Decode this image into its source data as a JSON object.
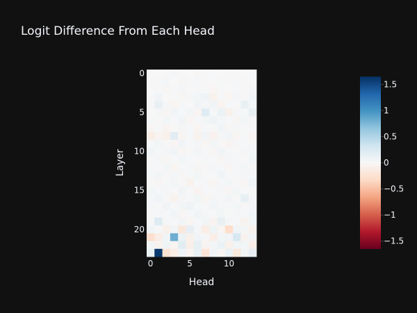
{
  "chart_data": {
    "type": "heatmap",
    "title": "Logit Difference From Each Head",
    "xlabel": "Head",
    "ylabel": "Layer",
    "x_range": [
      0,
      13
    ],
    "y_range": [
      0,
      23
    ],
    "x_ticks": [
      0,
      5,
      10
    ],
    "y_ticks": [
      0,
      5,
      10,
      15,
      20
    ],
    "colorscale": "RdBu",
    "zmin": -1.65,
    "zmax": 1.65,
    "colorbar_ticks": [
      1.5,
      1,
      0.5,
      0,
      -0.5,
      -1,
      -1.5
    ],
    "colorbar_tick_labels": [
      "1.5",
      "1",
      "0.5",
      "0",
      "−0.5",
      "−1",
      "−1.5"
    ],
    "z": [
      [
        0.02,
        0.0,
        -0.01,
        0.03,
        0.01,
        0.0,
        -0.02,
        0.01,
        0.02,
        0.0,
        -0.01,
        0.01,
        0.0,
        0.02
      ],
      [
        0.01,
        0.02,
        0.03,
        0.0,
        -0.02,
        0.01,
        0.02,
        -0.01,
        0.0,
        0.03,
        0.01,
        0.02,
        -0.01,
        0.0
      ],
      [
        0.0,
        0.01,
        -0.02,
        0.02,
        0.03,
        0.0,
        0.01,
        0.02,
        -0.03,
        0.01,
        0.0,
        0.02,
        0.01,
        0.03
      ],
      [
        0.02,
        0.05,
        0.0,
        0.01,
        -0.02,
        0.03,
        0.04,
        0.08,
        -0.06,
        0.02,
        -0.04,
        0.03,
        0.01,
        0.05
      ],
      [
        0.01,
        0.12,
        0.03,
        -0.04,
        0.02,
        0.0,
        0.05,
        0.03,
        0.06,
        -0.05,
        0.02,
        0.01,
        0.12,
        0.03
      ],
      [
        0.0,
        0.03,
        -0.02,
        0.05,
        0.02,
        0.04,
        -0.03,
        0.2,
        0.02,
        0.1,
        -0.08,
        0.03,
        0.02,
        0.12
      ],
      [
        0.02,
        0.01,
        0.04,
        0.02,
        0.05,
        -0.03,
        0.02,
        0.04,
        0.08,
        0.03,
        0.02,
        -0.02,
        0.04,
        0.01
      ],
      [
        -0.03,
        0.02,
        -0.05,
        0.01,
        0.03,
        0.02,
        -0.04,
        0.02,
        0.01,
        0.05,
        -0.02,
        0.03,
        0.01,
        0.02
      ],
      [
        -0.12,
        -0.05,
        -0.08,
        0.18,
        -0.04,
        0.02,
        -0.06,
        0.05,
        -0.07,
        0.03,
        0.06,
        -0.04,
        0.02,
        -0.03
      ],
      [
        0.02,
        0.04,
        0.01,
        -0.03,
        0.05,
        0.02,
        0.03,
        -0.02,
        0.04,
        0.01,
        -0.05,
        0.03,
        0.02,
        0.01
      ],
      [
        0.05,
        0.02,
        0.03,
        0.06,
        -0.02,
        0.01,
        0.04,
        0.02,
        -0.03,
        0.05,
        0.02,
        0.01,
        0.03,
        0.02
      ],
      [
        0.01,
        0.03,
        -0.02,
        0.02,
        0.04,
        0.02,
        0.01,
        0.03,
        0.02,
        -0.02,
        0.03,
        0.02,
        0.01,
        0.04
      ],
      [
        0.03,
        0.01,
        0.04,
        -0.04,
        0.02,
        0.03,
        -0.02,
        0.01,
        0.03,
        0.02,
        -0.03,
        0.02,
        0.04,
        0.01
      ],
      [
        0.02,
        0.04,
        0.01,
        0.03,
        -0.02,
        0.02,
        0.04,
        0.01,
        0.02,
        0.05,
        0.01,
        0.02,
        0.03,
        0.02
      ],
      [
        0.01,
        -0.03,
        0.02,
        0.04,
        0.01,
        -0.06,
        0.02,
        0.03,
        -0.04,
        0.02,
        0.04,
        0.01,
        -0.03,
        0.05
      ],
      [
        0.04,
        0.02,
        0.03,
        0.01,
        0.05,
        0.02,
        -0.05,
        0.02,
        0.01,
        0.03,
        -0.03,
        0.04,
        0.02,
        0.01
      ],
      [
        0.02,
        0.05,
        0.01,
        -0.06,
        0.03,
        0.01,
        0.04,
        -0.04,
        0.03,
        0.02,
        0.05,
        0.01,
        0.15,
        0.03
      ],
      [
        0.03,
        0.01,
        0.05,
        0.02,
        0.04,
        0.08,
        0.02,
        0.01,
        0.05,
        0.03,
        0.02,
        0.04,
        0.01,
        0.03
      ],
      [
        0.01,
        0.03,
        0.02,
        0.05,
        -0.03,
        0.02,
        0.06,
        0.03,
        0.02,
        0.04,
        0.01,
        0.03,
        0.02,
        0.05
      ],
      [
        0.02,
        0.22,
        0.03,
        0.01,
        0.05,
        -0.04,
        0.02,
        0.04,
        -0.05,
        0.12,
        0.03,
        0.02,
        -0.06,
        0.04
      ],
      [
        0.05,
        0.02,
        -0.08,
        0.06,
        -0.18,
        0.14,
        0.03,
        -0.12,
        0.08,
        -0.04,
        -0.3,
        0.06,
        0.04,
        -0.08
      ],
      [
        -0.28,
        -0.12,
        0.05,
        0.82,
        0.1,
        -0.08,
        0.06,
        0.03,
        -0.12,
        0.04,
        0.06,
        0.28,
        -0.06,
        0.05
      ],
      [
        0.04,
        -0.06,
        0.08,
        -0.04,
        0.18,
        -0.1,
        0.15,
        -0.05,
        0.04,
        0.1,
        -0.08,
        0.06,
        0.04,
        -0.1
      ],
      [
        0.1,
        1.6,
        -0.25,
        -0.12,
        0.08,
        -0.05,
        0.12,
        -0.22,
        0.06,
        -0.04,
        0.1,
        -0.18,
        0.04,
        0.14
      ]
    ]
  }
}
